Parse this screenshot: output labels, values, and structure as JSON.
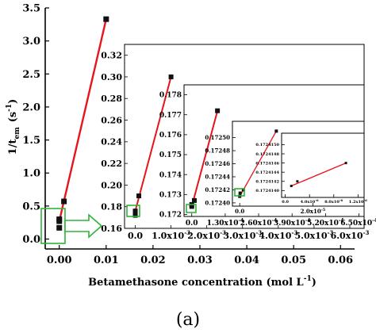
{
  "chart_data": [
    {
      "type": "scatter",
      "panel": "main",
      "title": "",
      "xlabel": "Betamethasone concentration (mol L",
      "xlabel_sup": "-1",
      "xlabel_close": ")",
      "ylabel": "1/t",
      "ylabel_sub": "em",
      "ylabel_unit": "(s",
      "ylabel_unit_sup": "-1",
      "ylabel_unit_close": ")",
      "xlim": [
        -0.003,
        0.063
      ],
      "ylim": [
        -0.15,
        3.5
      ],
      "x_ticks": [
        "0.00",
        "0.01",
        "0.02",
        "0.03",
        "0.04",
        "0.05",
        "0.06"
      ],
      "x_tick_values": [
        0,
        0.01,
        0.02,
        0.03,
        0.04,
        0.05,
        0.06
      ],
      "y_ticks": [
        "0.0",
        "0.5",
        "1.0",
        "1.5",
        "2.0",
        "2.5",
        "3.0",
        "3.5"
      ],
      "y_tick_values": [
        0,
        0.5,
        1,
        1.5,
        2,
        2.5,
        3,
        3.5
      ],
      "series": [
        {
          "points": [
            [
              0.0,
              0.17
            ],
            [
              0.0,
              0.27
            ],
            [
              0.0,
              0.3
            ],
            [
              0.001,
              0.57
            ],
            [
              0.01,
              3.33
            ]
          ],
          "fit": [
            [
              0.0,
              0.27
            ],
            [
              0.01,
              3.33
            ]
          ]
        }
      ]
    },
    {
      "type": "scatter",
      "panel": "inset-1",
      "x_ticks": [
        "0.0",
        "1.0x10",
        "2.0x10",
        "3.0x10",
        "4.0x10",
        "5.0x10",
        "6.0x10"
      ],
      "x_tick_values": [
        0,
        0.001,
        0.002,
        0.003,
        0.004,
        0.005,
        0.006
      ],
      "x_tick_exponent": "-3",
      "y_ticks": [
        "0.16",
        "0.18",
        "0.20",
        "0.22",
        "0.24",
        "0.26",
        "0.28",
        "0.30",
        "0.32"
      ],
      "y_tick_values": [
        0.16,
        0.18,
        0.2,
        0.22,
        0.24,
        0.26,
        0.28,
        0.3,
        0.32
      ],
      "xlim": [
        -0.0003,
        0.0064
      ],
      "ylim": [
        0.16,
        0.33
      ],
      "series": [
        {
          "points": [
            [
              0.0,
              0.172
            ],
            [
              0.0,
              0.174
            ],
            [
              0.0,
              0.176
            ],
            [
              0.0001,
              0.19
            ],
            [
              0.001,
              0.3
            ]
          ],
          "fit": [
            [
              0.0,
              0.176
            ],
            [
              0.001,
              0.3
            ]
          ]
        }
      ]
    },
    {
      "type": "scatter",
      "panel": "inset-2",
      "x_ticks": [
        "0.0",
        "1.30x10",
        "2.60x10",
        "3.90x10",
        "5.20x10",
        "6.50x10"
      ],
      "x_tick_values": [
        0,
        0.00013,
        0.00026,
        0.00039,
        0.00052,
        0.00065
      ],
      "x_tick_exponent": "-4",
      "y_ticks": [
        "0.172",
        "0.173",
        "0.174",
        "0.175",
        "0.176",
        "0.177",
        "0.178"
      ],
      "y_tick_values": [
        0.172,
        0.173,
        0.174,
        0.175,
        0.176,
        0.177,
        0.178
      ],
      "xlim": [
        -3e-05,
        0.00067
      ],
      "ylim": [
        0.1719,
        0.1785
      ],
      "series": [
        {
          "points": [
            [
              0.0,
              0.1724
            ],
            [
              0.0,
              0.1725
            ],
            [
              1e-05,
              0.1727
            ],
            [
              0.0001,
              0.1772
            ]
          ],
          "fit": [
            [
              0.0,
              0.1724
            ],
            [
              0.0001,
              0.1772
            ]
          ]
        }
      ]
    },
    {
      "type": "scatter",
      "panel": "inset-3",
      "x_ticks": [
        "0.0",
        "2.0x10"
      ],
      "x_tick_values": [
        0,
        2e-05
      ],
      "x_tick_exponent": "-5",
      "y_ticks": [
        "0.17240",
        "0.17242",
        "0.17244",
        "0.17246",
        "0.17248",
        "0.17250"
      ],
      "y_tick_values": [
        0.1724,
        0.17242,
        0.17244,
        0.17246,
        0.17248,
        0.1725
      ],
      "xlim": [
        -2e-06,
        3.4e-05
      ],
      "ylim": [
        0.172395,
        0.172525
      ],
      "series": [
        {
          "points": [
            [
              0.0,
              0.17241
            ],
            [
              1e-07,
              0.172415
            ],
            [
              1e-06,
              0.17242
            ],
            [
              1e-05,
              0.17251
            ]
          ],
          "fit": [
            [
              0.0,
              0.17241
            ],
            [
              1e-05,
              0.17251
            ]
          ]
        }
      ]
    },
    {
      "type": "scatter",
      "panel": "inset-4",
      "x_ticks": [
        "0.0",
        "4.0x10",
        "8.0x10",
        "1.2x10"
      ],
      "x_tick_values": [
        0,
        4e-07,
        8e-07,
        1.2e-06
      ],
      "x_tick_exponent": "-6",
      "y_ticks": [
        "0.1724140",
        "0.1724142",
        "0.1724144",
        "0.1724146",
        "0.1724148",
        "0.1724150"
      ],
      "y_tick_values": [
        0.172414,
        0.1724142,
        0.1724144,
        0.1724146,
        0.1724148,
        0.172415
      ],
      "xlim": [
        -6e-08,
        1.3e-06
      ],
      "ylim": [
        0.17241385,
        0.17241525
      ],
      "series": [
        {
          "points": [
            [
              1e-07,
              0.1724141
            ],
            [
              2e-07,
              0.1724142
            ],
            [
              1e-06,
              0.1724146
            ]
          ],
          "fit": [
            [
              1e-07,
              0.1724141
            ],
            [
              1e-06,
              0.1724146
            ]
          ]
        }
      ]
    }
  ],
  "caption": "(a)",
  "colors": {
    "marker": "#111111",
    "fit_line": "#e8141b",
    "zoom_box": "#2fb33a",
    "axis": "#000000"
  }
}
